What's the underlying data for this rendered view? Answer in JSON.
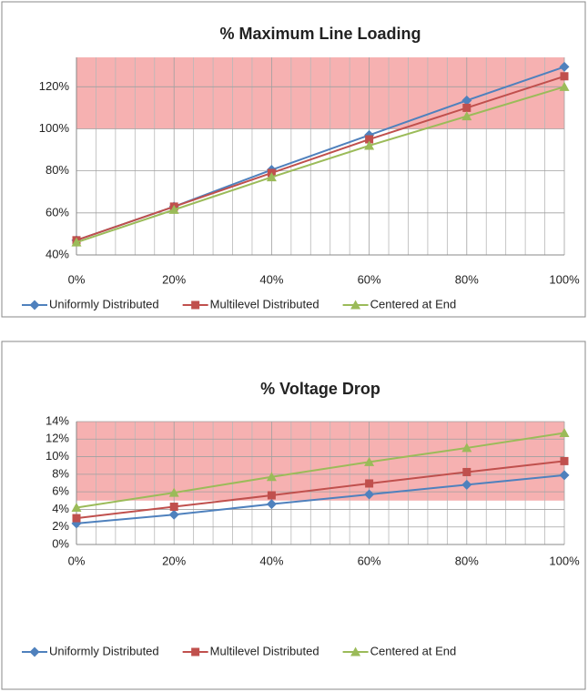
{
  "chart_data": [
    {
      "type": "line",
      "title": "% Maximum Line Loading",
      "x": [
        0,
        20,
        40,
        60,
        80,
        100
      ],
      "xlim": [
        0,
        100
      ],
      "xticks": [
        {
          "value": 0,
          "label": "0%"
        },
        {
          "value": 20,
          "label": "20%"
        },
        {
          "value": 40,
          "label": "40%"
        },
        {
          "value": 60,
          "label": "60%"
        },
        {
          "value": 80,
          "label": "80%"
        },
        {
          "value": 100,
          "label": "100%"
        }
      ],
      "ylim": [
        40,
        134
      ],
      "yticks": [
        {
          "value": 40,
          "label": "40%"
        },
        {
          "value": 60,
          "label": "60%"
        },
        {
          "value": 80,
          "label": "80%"
        },
        {
          "value": 100,
          "label": "100%"
        },
        {
          "value": 120,
          "label": "120%"
        }
      ],
      "grid": true,
      "legend": "bottom",
      "bands": [
        {
          "from": 100,
          "to": 134,
          "color": "#f4a3a3"
        }
      ],
      "series": [
        {
          "name": "Uniformly Distributed",
          "color": "#4f81bd",
          "marker": "diamond",
          "values": [
            47,
            63,
            80.5,
            97,
            113.5,
            129.5
          ]
        },
        {
          "name": "Multilevel Distributed",
          "color": "#c0504d",
          "marker": "square",
          "values": [
            47,
            63,
            79,
            95,
            110,
            125
          ]
        },
        {
          "name": "Centered at End",
          "color": "#9bbb59",
          "marker": "triangle",
          "values": [
            46,
            61.5,
            77,
            92,
            106,
            120
          ]
        }
      ]
    },
    {
      "type": "line",
      "title": "% Voltage Drop",
      "x": [
        0,
        20,
        40,
        60,
        80,
        100
      ],
      "xlim": [
        0,
        100
      ],
      "xticks": [
        {
          "value": 0,
          "label": "0%"
        },
        {
          "value": 20,
          "label": "20%"
        },
        {
          "value": 40,
          "label": "40%"
        },
        {
          "value": 60,
          "label": "60%"
        },
        {
          "value": 80,
          "label": "80%"
        },
        {
          "value": 100,
          "label": "100%"
        }
      ],
      "ylim": [
        0,
        14
      ],
      "yticks": [
        {
          "value": 0,
          "label": "0%"
        },
        {
          "value": 2,
          "label": "2%"
        },
        {
          "value": 4,
          "label": "4%"
        },
        {
          "value": 6,
          "label": "6%"
        },
        {
          "value": 8,
          "label": "8%"
        },
        {
          "value": 10,
          "label": "10%"
        },
        {
          "value": 12,
          "label": "12%"
        },
        {
          "value": 14,
          "label": "14%"
        }
      ],
      "grid": true,
      "legend": "bottom",
      "bands": [
        {
          "from": 5,
          "to": 14,
          "color": "#f4a3a3"
        }
      ],
      "series": [
        {
          "name": "Uniformly Distributed",
          "color": "#4f81bd",
          "marker": "diamond",
          "values": [
            2.4,
            3.4,
            4.6,
            5.7,
            6.8,
            7.9
          ]
        },
        {
          "name": "Multilevel Distributed",
          "color": "#c0504d",
          "marker": "square",
          "values": [
            3.0,
            4.3,
            5.6,
            6.95,
            8.25,
            9.5
          ]
        },
        {
          "name": "Centered at End",
          "color": "#9bbb59",
          "marker": "triangle",
          "values": [
            4.2,
            5.9,
            7.7,
            9.4,
            11.0,
            12.7
          ]
        }
      ]
    }
  ]
}
